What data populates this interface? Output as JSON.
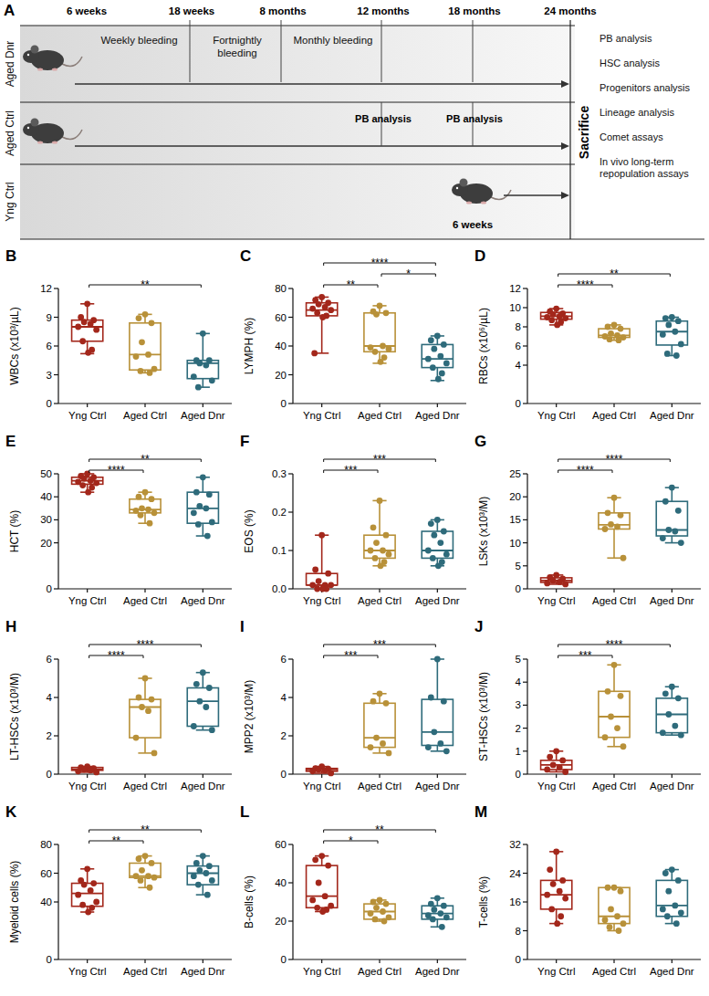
{
  "diagram": {
    "panel": "A",
    "time_labels": [
      "6 weeks",
      "18 weeks",
      "8 months",
      "12 months",
      "18 months",
      "24 months"
    ],
    "groups": [
      "Aged Dnr",
      "Aged Ctrl",
      "Yng Ctrl"
    ],
    "phases": [
      "Weekly bleeding",
      "Fortnightly bleeding",
      "Monthly bleeding"
    ],
    "interim": [
      "PB analysis",
      "PB analysis"
    ],
    "young_age": "6 weeks",
    "endpoint": "Sacrifice",
    "analyses": [
      "PB analysis",
      "HSC analysis",
      "Progenitors analysis",
      "Lineage analysis",
      "Comet assays",
      "In vivo long-term repopulation assays"
    ]
  },
  "chart_data": [
    {
      "type": "box",
      "panel": "B",
      "y_label": "WBCs (x10³/µL)",
      "categories": [
        "Yng Ctrl",
        "Aged Ctrl",
        "Aged Dnr"
      ],
      "colors": [
        "#a3271b",
        "#b89139",
        "#2e6b7b"
      ],
      "ylim": [
        0,
        12
      ],
      "yticks": [
        0,
        3,
        6,
        9,
        12
      ],
      "boxes": [
        {
          "min": 5.2,
          "q1": 6.5,
          "median": 8.0,
          "q3": 8.7,
          "max": 10.4
        },
        {
          "min": 3.2,
          "q1": 3.5,
          "median": 5.1,
          "q3": 8.4,
          "max": 9.3
        },
        {
          "min": 1.7,
          "q1": 2.6,
          "median": 4.2,
          "q3": 4.5,
          "max": 7.3
        }
      ],
      "points": [
        [
          10.4,
          9.0,
          8.7,
          8.5,
          8.3,
          8.0,
          7.7,
          6.5,
          5.6,
          5.3
        ],
        [
          9.3,
          8.9,
          8.4,
          6.4,
          5.1,
          4.9,
          3.6,
          3.4,
          3.2
        ],
        [
          7.3,
          4.5,
          4.5,
          4.2,
          4.0,
          2.8,
          2.4,
          1.7
        ]
      ],
      "annotations": [
        {
          "groups": [
            "Yng Ctrl",
            "Aged Dnr"
          ],
          "label": "**"
        }
      ]
    },
    {
      "type": "box",
      "panel": "C",
      "y_label": "LYMPH (%)",
      "categories": [
        "Yng Ctrl",
        "Aged Ctrl",
        "Aged Dnr"
      ],
      "colors": [
        "#a3271b",
        "#b89139",
        "#2e6b7b"
      ],
      "ylim": [
        0,
        80
      ],
      "yticks": [
        0,
        20,
        40,
        60,
        80
      ],
      "boxes": [
        {
          "min": 35,
          "q1": 61,
          "median": 65,
          "q3": 70,
          "max": 74
        },
        {
          "min": 28,
          "q1": 36,
          "median": 40,
          "q3": 63,
          "max": 68
        },
        {
          "min": 16,
          "q1": 25,
          "median": 31,
          "q3": 41,
          "max": 47
        }
      ],
      "points": [
        [
          74,
          72,
          70,
          69,
          67,
          66,
          65,
          63,
          61,
          60,
          35
        ],
        [
          68,
          64,
          63,
          62,
          40,
          39,
          38,
          36,
          32,
          29
        ],
        [
          47,
          44,
          41,
          38,
          33,
          31,
          28,
          25,
          21,
          17
        ]
      ],
      "annotations": [
        {
          "groups": [
            "Yng Ctrl",
            "Aged Ctrl"
          ],
          "label": "**"
        },
        {
          "groups": [
            "Aged Ctrl",
            "Aged Dnr"
          ],
          "label": "*"
        },
        {
          "groups": [
            "Yng Ctrl",
            "Aged Dnr"
          ],
          "label": "****"
        }
      ]
    },
    {
      "type": "box",
      "panel": "D",
      "y_label": "RBCs (x10⁶/µL)",
      "categories": [
        "Yng Ctrl",
        "Aged Ctrl",
        "Aged Dnr"
      ],
      "colors": [
        "#a3271b",
        "#b89139",
        "#2e6b7b"
      ],
      "ylim": [
        0,
        12
      ],
      "yticks": [
        0,
        4,
        6,
        8,
        10,
        12
      ],
      "boxes": [
        {
          "min": 8.2,
          "q1": 8.8,
          "median": 9.1,
          "q3": 9.5,
          "max": 9.9
        },
        {
          "min": 6.6,
          "q1": 6.9,
          "median": 7.1,
          "q3": 7.8,
          "max": 8.2
        },
        {
          "min": 5.0,
          "q1": 6.1,
          "median": 7.5,
          "q3": 8.6,
          "max": 9.0
        }
      ],
      "points": [
        [
          9.9,
          9.6,
          9.4,
          9.3,
          9.1,
          9.0,
          8.9,
          8.7,
          8.5,
          8.2
        ],
        [
          8.2,
          8.0,
          7.8,
          7.3,
          7.1,
          7.0,
          6.9,
          6.7,
          6.6
        ],
        [
          9.0,
          8.9,
          8.6,
          8.2,
          7.5,
          7.2,
          6.2,
          5.2,
          5.0
        ]
      ],
      "annotations": [
        {
          "groups": [
            "Yng Ctrl",
            "Aged Ctrl"
          ],
          "label": "****"
        },
        {
          "groups": [
            "Yng Ctrl",
            "Aged Dnr"
          ],
          "label": "**"
        }
      ]
    },
    {
      "type": "box",
      "panel": "E",
      "y_label": "HCT (%)",
      "categories": [
        "Yng Ctrl",
        "Aged Ctrl",
        "Aged Dnr"
      ],
      "colors": [
        "#a3271b",
        "#b89139",
        "#2e6b7b"
      ],
      "ylim": [
        0,
        50
      ],
      "yticks": [
        0,
        20,
        30,
        40,
        50
      ],
      "boxes": [
        {
          "min": 42,
          "q1": 45.5,
          "median": 47,
          "q3": 48.5,
          "max": 50
        },
        {
          "min": 28.5,
          "q1": 33,
          "median": 34.5,
          "q3": 39,
          "max": 42
        },
        {
          "min": 23,
          "q1": 28.5,
          "median": 35,
          "q3": 42,
          "max": 48.5
        }
      ],
      "points": [
        [
          50,
          49,
          48.5,
          48,
          47,
          46.5,
          46,
          45,
          44,
          42
        ],
        [
          42,
          40,
          39,
          35,
          34.5,
          34,
          33,
          32,
          28.5
        ],
        [
          48.5,
          42,
          41,
          36,
          35,
          33,
          29,
          28,
          23
        ]
      ],
      "annotations": [
        {
          "groups": [
            "Yng Ctrl",
            "Aged Ctrl"
          ],
          "label": "****"
        },
        {
          "groups": [
            "Yng Ctrl",
            "Aged Dnr"
          ],
          "label": "**"
        }
      ]
    },
    {
      "type": "box",
      "panel": "F",
      "y_label": "EOS (%)",
      "categories": [
        "Yng Ctrl",
        "Aged Ctrl",
        "Aged Dnr"
      ],
      "colors": [
        "#a3271b",
        "#b89139",
        "#2e6b7b"
      ],
      "ylim": [
        0,
        0.3
      ],
      "yticks": [
        {
          "value": 0,
          "label": "0.0"
        },
        0.1,
        0.2,
        0.3
      ],
      "boxes": [
        {
          "min": 0,
          "q1": 0.01,
          "median": 0.01,
          "q3": 0.04,
          "max": 0.14
        },
        {
          "min": 0.06,
          "q1": 0.08,
          "median": 0.1,
          "q3": 0.14,
          "max": 0.23
        },
        {
          "min": 0.06,
          "q1": 0.08,
          "median": 0.1,
          "q3": 0.15,
          "max": 0.18
        }
      ],
      "points": [
        [
          0.14,
          0.05,
          0.04,
          0.02,
          0.01,
          0.01,
          0.01,
          0,
          0,
          0
        ],
        [
          0.23,
          0.16,
          0.14,
          0.12,
          0.1,
          0.1,
          0.09,
          0.08,
          0.07,
          0.06
        ],
        [
          0.18,
          0.17,
          0.15,
          0.14,
          0.12,
          0.1,
          0.09,
          0.08,
          0.07,
          0.06
        ]
      ],
      "annotations": [
        {
          "groups": [
            "Yng Ctrl",
            "Aged Ctrl"
          ],
          "label": "***"
        },
        {
          "groups": [
            "Yng Ctrl",
            "Aged Dnr"
          ],
          "label": "***"
        }
      ]
    },
    {
      "type": "box",
      "panel": "G",
      "y_label": "LSKs (x10³/M)",
      "categories": [
        "Yng Ctrl",
        "Aged Ctrl",
        "Aged Dnr"
      ],
      "colors": [
        "#a3271b",
        "#b89139",
        "#2e6b7b"
      ],
      "ylim": [
        0,
        25
      ],
      "yticks": [
        0,
        5,
        10,
        15,
        20,
        25
      ],
      "boxes": [
        {
          "min": 1.0,
          "q1": 1.4,
          "median": 1.8,
          "q3": 2.4,
          "max": 3.0
        },
        {
          "min": 6.7,
          "q1": 13,
          "median": 13.9,
          "q3": 16.5,
          "max": 19.8
        },
        {
          "min": 10,
          "q1": 11.5,
          "median": 12.8,
          "q3": 19,
          "max": 22
        }
      ],
      "points": [
        [
          3.0,
          2.5,
          2.2,
          1.8,
          1.5,
          1.2,
          1.0
        ],
        [
          19.8,
          16.5,
          16,
          14,
          13.5,
          13,
          6.7
        ],
        [
          22,
          19,
          17,
          12.8,
          12.5,
          11,
          10
        ]
      ],
      "annotations": [
        {
          "groups": [
            "Yng Ctrl",
            "Aged Ctrl"
          ],
          "label": "****"
        },
        {
          "groups": [
            "Yng Ctrl",
            "Aged Dnr"
          ],
          "label": "****"
        }
      ]
    },
    {
      "type": "box",
      "panel": "H",
      "y_label": "LT-HSCs (x10³/M)",
      "categories": [
        "Yng Ctrl",
        "Aged Ctrl",
        "Aged Dnr"
      ],
      "colors": [
        "#a3271b",
        "#b89139",
        "#2e6b7b"
      ],
      "ylim": [
        0,
        6
      ],
      "yticks": [
        0,
        2,
        4,
        6
      ],
      "boxes": [
        {
          "min": 0.1,
          "q1": 0.2,
          "median": 0.25,
          "q3": 0.35,
          "max": 0.4
        },
        {
          "min": 1.1,
          "q1": 1.9,
          "median": 3.5,
          "q3": 3.9,
          "max": 5.0
        },
        {
          "min": 2.3,
          "q1": 2.5,
          "median": 3.8,
          "q3": 4.5,
          "max": 5.3
        }
      ],
      "points": [
        [
          0.4,
          0.35,
          0.3,
          0.25,
          0.2,
          0.15,
          0.1
        ],
        [
          5.0,
          4.0,
          3.9,
          3.5,
          3.3,
          1.9,
          1.1
        ],
        [
          5.3,
          4.7,
          4.5,
          3.8,
          3.5,
          2.5,
          2.3
        ]
      ],
      "annotations": [
        {
          "groups": [
            "Yng Ctrl",
            "Aged Ctrl"
          ],
          "label": "****"
        },
        {
          "groups": [
            "Yng Ctrl",
            "Aged Dnr"
          ],
          "label": "****"
        }
      ]
    },
    {
      "type": "box",
      "panel": "I",
      "y_label": "MPP2 (x10³/M)",
      "categories": [
        "Yng Ctrl",
        "Aged Ctrl",
        "Aged Dnr"
      ],
      "colors": [
        "#a3271b",
        "#b89139",
        "#2e6b7b"
      ],
      "ylim": [
        0,
        6
      ],
      "yticks": [
        0,
        2,
        4,
        6
      ],
      "boxes": [
        {
          "min": 0.05,
          "q1": 0.15,
          "median": 0.25,
          "q3": 0.3,
          "max": 0.4
        },
        {
          "min": 1.1,
          "q1": 1.4,
          "median": 1.9,
          "q3": 3.7,
          "max": 4.2
        },
        {
          "min": 1.2,
          "q1": 1.5,
          "median": 2.2,
          "q3": 3.9,
          "max": 6.0
        }
      ],
      "points": [
        [
          0.4,
          0.3,
          0.28,
          0.25,
          0.2,
          0.15,
          0.05
        ],
        [
          4.2,
          3.8,
          3.7,
          1.9,
          1.6,
          1.4,
          1.1
        ],
        [
          6.0,
          4.0,
          3.8,
          2.2,
          1.6,
          1.4,
          1.2
        ]
      ],
      "annotations": [
        {
          "groups": [
            "Yng Ctrl",
            "Aged Ctrl"
          ],
          "label": "***"
        },
        {
          "groups": [
            "Yng Ctrl",
            "Aged Dnr"
          ],
          "label": "***"
        }
      ]
    },
    {
      "type": "box",
      "panel": "J",
      "y_label": "ST-HSCs (x10³/M)",
      "categories": [
        "Yng Ctrl",
        "Aged Ctrl",
        "Aged Dnr"
      ],
      "colors": [
        "#a3271b",
        "#b89139",
        "#2e6b7b"
      ],
      "ylim": [
        0,
        5
      ],
      "yticks": [
        0,
        1,
        2,
        3,
        4,
        5
      ],
      "boxes": [
        {
          "min": 0.1,
          "q1": 0.2,
          "median": 0.4,
          "q3": 0.6,
          "max": 1.0
        },
        {
          "min": 1.2,
          "q1": 1.6,
          "median": 2.5,
          "q3": 3.6,
          "max": 4.75
        },
        {
          "min": 1.7,
          "q1": 1.8,
          "median": 2.6,
          "q3": 3.3,
          "max": 3.8
        }
      ],
      "points": [
        [
          1.0,
          0.75,
          0.6,
          0.4,
          0.3,
          0.2,
          0.1
        ],
        [
          4.75,
          3.6,
          3.4,
          2.5,
          2.0,
          1.6,
          1.2
        ],
        [
          3.8,
          3.5,
          3.3,
          2.6,
          2.1,
          1.8,
          1.7
        ]
      ],
      "annotations": [
        {
          "groups": [
            "Yng Ctrl",
            "Aged Ctrl"
          ],
          "label": "***"
        },
        {
          "groups": [
            "Yng Ctrl",
            "Aged Dnr"
          ],
          "label": "****"
        }
      ]
    },
    {
      "type": "box",
      "panel": "K",
      "y_label": "Myeloid cells (%)",
      "categories": [
        "Yng Ctrl",
        "Aged Ctrl",
        "Aged Dnr"
      ],
      "colors": [
        "#a3271b",
        "#b89139",
        "#2e6b7b"
      ],
      "ylim": [
        0,
        80
      ],
      "yticks": [
        0,
        40,
        60,
        80
      ],
      "boxes": [
        {
          "min": 33,
          "q1": 37,
          "median": 46,
          "q3": 53,
          "max": 63
        },
        {
          "min": 50,
          "q1": 57,
          "median": 58,
          "q3": 67,
          "max": 72
        },
        {
          "min": 45,
          "q1": 52,
          "median": 60,
          "q3": 65,
          "max": 72
        }
      ],
      "points": [
        [
          63,
          55,
          53,
          52,
          48,
          45,
          40,
          38,
          36,
          33
        ],
        [
          72,
          70,
          67,
          62,
          58,
          58,
          57,
          55,
          50
        ],
        [
          72,
          67,
          65,
          62,
          60,
          58,
          55,
          52,
          45
        ]
      ],
      "annotations": [
        {
          "groups": [
            "Yng Ctrl",
            "Aged Ctrl"
          ],
          "label": "**"
        },
        {
          "groups": [
            "Yng Ctrl",
            "Aged Dnr"
          ],
          "label": "**"
        }
      ]
    },
    {
      "type": "box",
      "panel": "L",
      "y_label": "B-cells (%)",
      "categories": [
        "Yng Ctrl",
        "Aged Ctrl",
        "Aged Dnr"
      ],
      "colors": [
        "#a3271b",
        "#b89139",
        "#2e6b7b"
      ],
      "ylim": [
        0,
        60
      ],
      "yticks": [
        0,
        20,
        40,
        60
      ],
      "boxes": [
        {
          "min": 25,
          "q1": 27,
          "median": 33,
          "q3": 49,
          "max": 54
        },
        {
          "min": 20,
          "q1": 21,
          "median": 25,
          "q3": 29,
          "max": 31
        },
        {
          "min": 17,
          "q1": 21,
          "median": 24,
          "q3": 28,
          "max": 32
        }
      ],
      "points": [
        [
          54,
          52,
          49,
          40,
          33,
          31,
          28,
          27,
          26,
          25
        ],
        [
          31,
          30,
          29,
          27,
          25,
          24,
          22,
          21,
          20
        ],
        [
          32,
          29,
          28,
          26,
          24,
          23,
          22,
          21,
          17
        ]
      ],
      "annotations": [
        {
          "groups": [
            "Yng Ctrl",
            "Aged Ctrl"
          ],
          "label": "*"
        },
        {
          "groups": [
            "Yng Ctrl",
            "Aged Dnr"
          ],
          "label": "**"
        }
      ]
    },
    {
      "type": "box",
      "panel": "M",
      "y_label": "T-cells (%)",
      "categories": [
        "Yng Ctrl",
        "Aged Ctrl",
        "Aged Dnr"
      ],
      "colors": [
        "#a3271b",
        "#b89139",
        "#2e6b7b"
      ],
      "ylim": [
        0,
        32
      ],
      "yticks": [
        0,
        8,
        16,
        24,
        32
      ],
      "boxes": [
        {
          "min": 10,
          "q1": 14,
          "median": 18,
          "q3": 22,
          "max": 30
        },
        {
          "min": 8,
          "q1": 10,
          "median": 12,
          "q3": 20,
          "max": 20
        },
        {
          "min": 10,
          "q1": 12,
          "median": 15,
          "q3": 22,
          "max": 25
        }
      ],
      "points": [
        [
          30,
          25,
          22,
          21,
          19,
          18,
          17,
          14,
          12,
          10
        ],
        [
          20,
          20,
          19,
          14,
          12,
          11,
          10,
          9,
          8
        ],
        [
          25,
          24,
          22,
          19,
          15,
          14,
          13,
          12,
          10
        ]
      ],
      "annotations": []
    }
  ]
}
